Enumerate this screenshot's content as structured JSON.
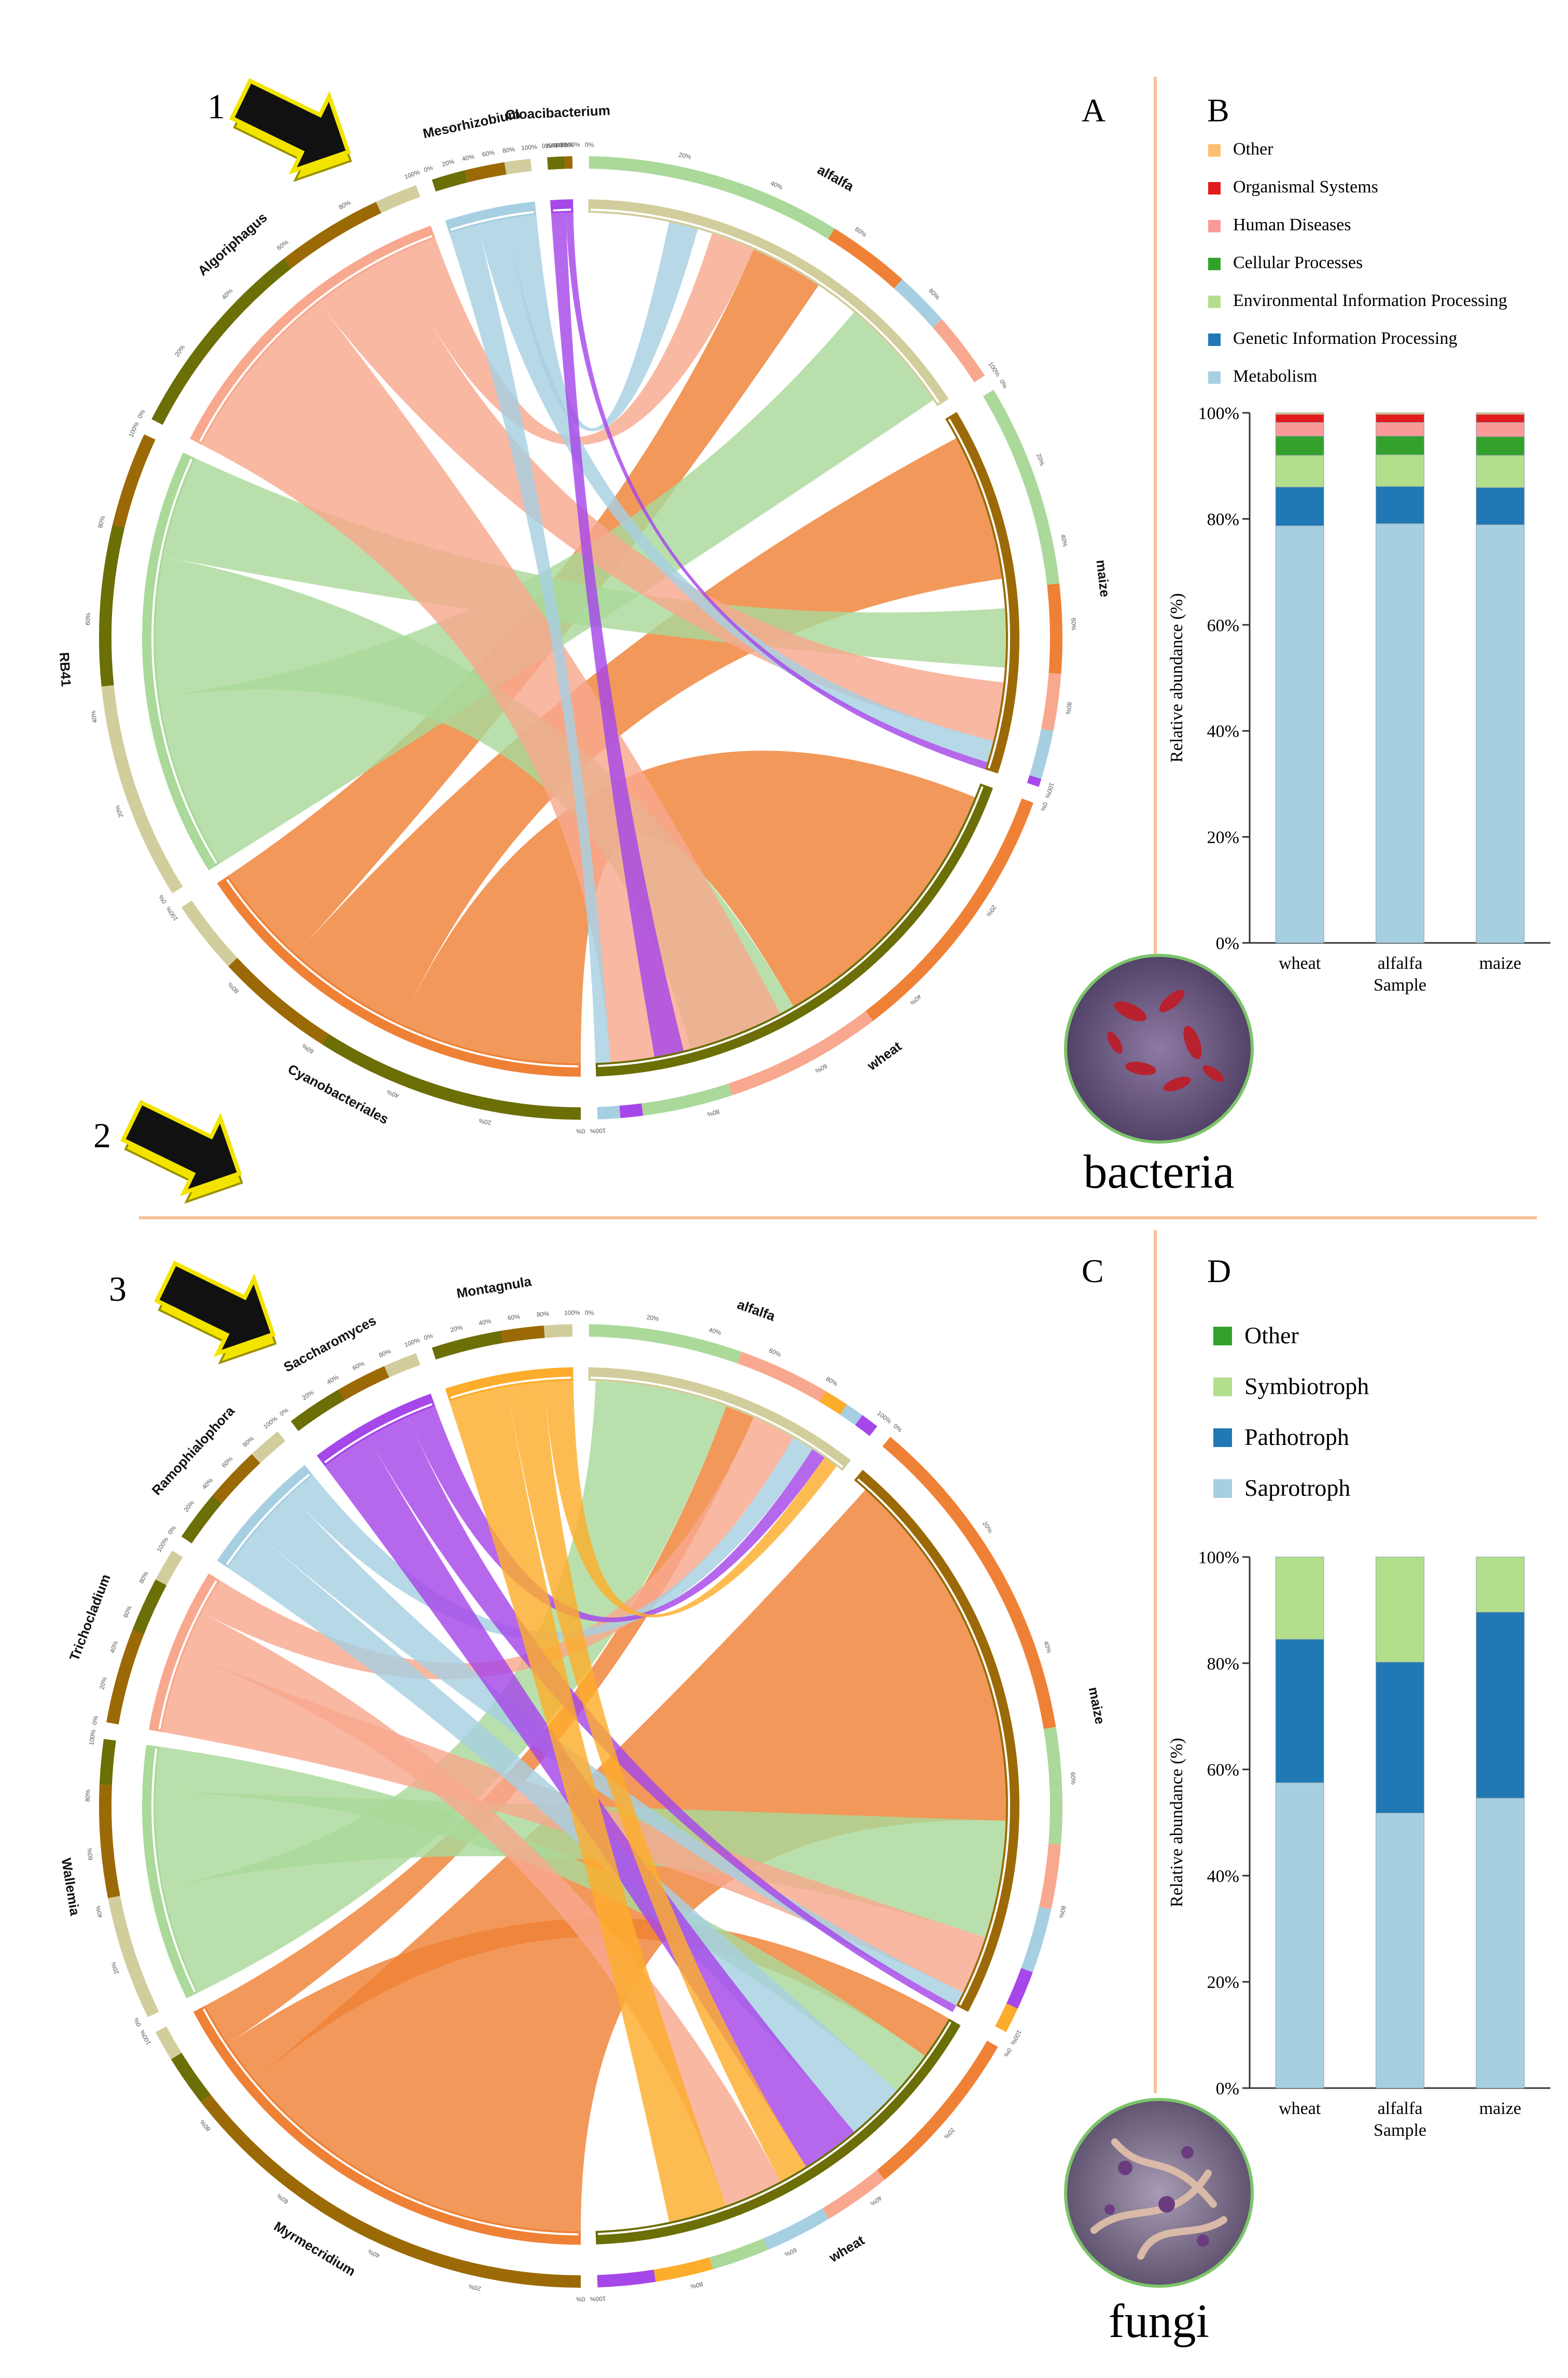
{
  "colors": {
    "divider": "#f5c29c",
    "outline_photo": "#7cc46a",
    "arrow_fill": "#111111",
    "arrow_edge": "#f3e400"
  },
  "panels": {
    "A": "A",
    "B": "B",
    "C": "C",
    "D": "D",
    "num1": "1",
    "num2": "2",
    "num3": "3"
  },
  "photos": {
    "bacteria": "bacteria",
    "fungi": "fungi"
  },
  "chart_data": [
    {
      "type": "bar",
      "panel": "B",
      "title": "",
      "xlabel": "Sample",
      "ylabel": "Relative abundance (%)",
      "categories": [
        "wheat",
        "alfalfa",
        "maize"
      ],
      "ylim": [
        0,
        100
      ],
      "yticks": [
        "0%",
        "20%",
        "40%",
        "60%",
        "80%",
        "100%"
      ],
      "legend_position": "top",
      "series": [
        {
          "name": "Metabolism",
          "color": "#a7cfe2",
          "values": [
            78.7,
            79.1,
            78.9
          ]
        },
        {
          "name": "Genetic Information Processing",
          "color": "#2078b5",
          "values": [
            7.3,
            7.0,
            7.0
          ]
        },
        {
          "name": "Environmental Information Processing",
          "color": "#b3df8c",
          "values": [
            6.0,
            6.0,
            6.1
          ]
        },
        {
          "name": "Cellular Processes",
          "color": "#33a12c",
          "values": [
            3.6,
            3.5,
            3.5
          ]
        },
        {
          "name": "Human Diseases",
          "color": "#f99a99",
          "values": [
            2.6,
            2.6,
            2.7
          ]
        },
        {
          "name": "Organismal Systems",
          "color": "#e31b1c",
          "values": [
            1.5,
            1.5,
            1.5
          ]
        },
        {
          "name": "Other",
          "color": "#fdbf6f",
          "values": [
            0.3,
            0.3,
            0.3
          ]
        }
      ]
    },
    {
      "type": "bar",
      "panel": "D",
      "title": "",
      "xlabel": "Sample",
      "ylabel": "Relative abundance (%)",
      "categories": [
        "wheat",
        "alfalfa",
        "maize"
      ],
      "ylim": [
        0,
        100
      ],
      "yticks": [
        "0%",
        "20%",
        "40%",
        "60%",
        "80%",
        "100%"
      ],
      "legend_position": "top",
      "series": [
        {
          "name": "Saprotroph",
          "color": "#a7cfe2",
          "values": [
            57.5,
            51.8,
            54.6
          ]
        },
        {
          "name": "Pathotroph",
          "color": "#2078b5",
          "values": [
            27.0,
            28.4,
            35.0
          ]
        },
        {
          "name": "Symbiotroph",
          "color": "#b3df8c",
          "values": [
            15.5,
            19.8,
            10.4
          ]
        },
        {
          "name": "Other",
          "color": "#33a12c",
          "values": [
            0,
            0,
            0
          ]
        }
      ]
    },
    {
      "type": "chord",
      "panel": "A",
      "samples": [
        {
          "name": "alfalfa",
          "color": "#d2cd9c"
        },
        {
          "name": "maize",
          "color": "#9b6a06"
        },
        {
          "name": "wheat",
          "color": "#6c6e06"
        }
      ],
      "taxa": [
        {
          "name": "Cloacibacterium",
          "color": "#a647e9"
        },
        {
          "name": "Mesorhizobium",
          "color": "#a7cfe2"
        },
        {
          "name": "Algoriphagus",
          "color": "#f8a88e"
        },
        {
          "name": "RB41",
          "color": "#aad99a"
        },
        {
          "name": "Cyanobacteriales",
          "color": "#ef8136"
        }
      ],
      "tick_labels": [
        "0%",
        "20%",
        "40%",
        "60%",
        "80%",
        "100%"
      ]
    },
    {
      "type": "chord",
      "panel": "C",
      "samples": [
        {
          "name": "alfalfa",
          "color": "#d2cd9c"
        },
        {
          "name": "wheat",
          "color": "#6c6e06"
        },
        {
          "name": "maize",
          "color": "#9b6a06"
        }
      ],
      "taxa": [
        {
          "name": "Montagnula",
          "color": "#fdad2c"
        },
        {
          "name": "Saccharomyces",
          "color": "#a647e9"
        },
        {
          "name": "Ramophialophora",
          "color": "#a7cfe2"
        },
        {
          "name": "Trichocladium",
          "color": "#f8a88e"
        },
        {
          "name": "Wallemia",
          "color": "#aad99a"
        },
        {
          "name": "Myrmecridium",
          "color": "#ef8136"
        }
      ],
      "tick_labels": [
        "0%",
        "20%",
        "40%",
        "60%",
        "80%",
        "100%"
      ]
    }
  ]
}
